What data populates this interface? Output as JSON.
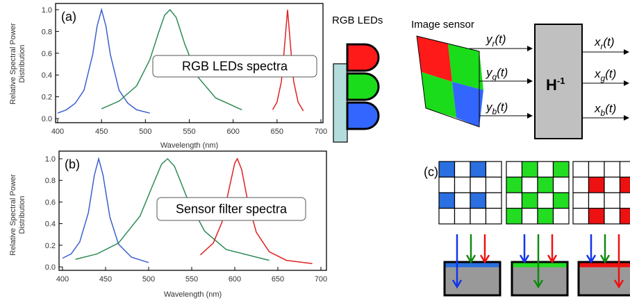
{
  "chart_data": [
    {
      "type": "line",
      "panel_label": "(a)",
      "annotation": "RGB LEDs spectra",
      "xlabel": "Wavelength (nm)",
      "ylabel": [
        "Relative Spectral Power",
        "Distribution"
      ],
      "xlim": [
        400,
        700
      ],
      "ylim": [
        0,
        1
      ],
      "xticks": [
        400,
        450,
        500,
        550,
        600,
        650,
        700
      ],
      "yticks": [
        {
          "value": 0,
          "label": "0.0"
        },
        0.2,
        0.4,
        0.6,
        0.8,
        {
          "value": 1,
          "label": "1.0"
        }
      ],
      "series": [
        {
          "color": "#3b5fd0",
          "x": [
            400,
            410,
            420,
            430,
            440,
            445,
            450,
            455,
            460,
            470,
            480,
            490,
            505
          ],
          "values": [
            0.05,
            0.08,
            0.14,
            0.26,
            0.59,
            0.85,
            1.0,
            0.85,
            0.59,
            0.26,
            0.14,
            0.08,
            0.05
          ]
        },
        {
          "color": "#2e8b57",
          "x": [
            450,
            470,
            490,
            505,
            515,
            522,
            528,
            535,
            545,
            560,
            580,
            610
          ],
          "values": [
            0.09,
            0.16,
            0.3,
            0.54,
            0.79,
            0.95,
            1.0,
            0.93,
            0.68,
            0.38,
            0.19,
            0.08
          ]
        },
        {
          "color": "#e02020",
          "x": [
            645,
            650,
            655,
            658,
            662,
            666,
            669,
            674,
            680
          ],
          "values": [
            0.08,
            0.15,
            0.34,
            0.61,
            1.0,
            0.61,
            0.34,
            0.15,
            0.07
          ]
        }
      ]
    },
    {
      "type": "line",
      "panel_label": "(b)",
      "annotation": "Sensor filter spectra",
      "xlabel": "Wavelength (nm)",
      "ylabel": [
        "Relative Spectral Power",
        "Distribution"
      ],
      "xlim": [
        400,
        700
      ],
      "ylim": [
        0,
        1
      ],
      "xticks": [
        400,
        450,
        500,
        550,
        600,
        650,
        700
      ],
      "yticks": [
        {
          "value": 0,
          "label": "0.0"
        },
        0.2,
        0.4,
        0.6,
        0.8,
        {
          "value": 1,
          "label": "1.0"
        }
      ],
      "series": [
        {
          "color": "#3b5fd0",
          "x": [
            400,
            410,
            420,
            430,
            437,
            442,
            447,
            455,
            465,
            480,
            500
          ],
          "values": [
            0.08,
            0.12,
            0.23,
            0.5,
            0.85,
            1.0,
            0.85,
            0.46,
            0.21,
            0.09,
            0.04
          ]
        },
        {
          "color": "#2e8b57",
          "x": [
            415,
            440,
            465,
            490,
            505,
            515,
            522,
            530,
            545,
            565,
            590,
            640
          ],
          "values": [
            0.07,
            0.12,
            0.22,
            0.47,
            0.76,
            0.95,
            1.0,
            0.93,
            0.63,
            0.33,
            0.16,
            0.06
          ]
        },
        {
          "color": "#e02020",
          "x": [
            560,
            575,
            585,
            595,
            600,
            603,
            608,
            615,
            625,
            640,
            660,
            690
          ],
          "values": [
            0.11,
            0.22,
            0.41,
            0.78,
            0.96,
            1.0,
            0.9,
            0.61,
            0.32,
            0.14,
            0.06,
            0.03
          ]
        }
      ]
    }
  ],
  "diagram": {
    "leds_label": "RGB LEDs",
    "sensor_label": "Image sensor",
    "inputs": [
      {
        "var": "y",
        "sub": "r",
        "arg": "(t)"
      },
      {
        "var": "y",
        "sub": "g",
        "arg": "(t)"
      },
      {
        "var": "y",
        "sub": "b",
        "arg": "(t)"
      }
    ],
    "matrix": {
      "base": "H",
      "sup": "-1"
    },
    "outputs": [
      {
        "var": "x",
        "sub": "r",
        "arg": "(t)"
      },
      {
        "var": "x",
        "sub": "g",
        "arg": "(t)"
      },
      {
        "var": "x",
        "sub": "b",
        "arg": "(t)"
      }
    ],
    "panel_label": "(c)"
  }
}
